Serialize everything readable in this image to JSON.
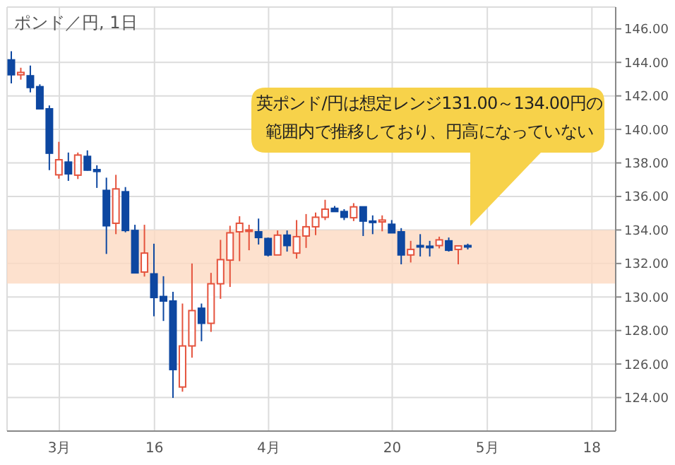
{
  "chart_data": {
    "type": "candlestick",
    "title": "ポンド／円, 1日",
    "categories": [
      null,
      null,
      null,
      null,
      null,
      "3月",
      null,
      null,
      null,
      null,
      null,
      null,
      null,
      null,
      null,
      "16",
      null,
      null,
      null,
      null,
      null,
      null,
      null,
      null,
      null,
      null,
      null,
      "4月",
      null,
      null,
      null,
      null,
      null,
      null,
      null,
      null,
      null,
      null,
      null,
      null,
      "20",
      null,
      null,
      null,
      null,
      null,
      null,
      null,
      null,
      null,
      "5月",
      null,
      null,
      null,
      null,
      null,
      null,
      null,
      null,
      null,
      null,
      "18",
      null,
      null
    ],
    "ohlc": [
      [
        144.15,
        144.66,
        142.75,
        143.26
      ],
      [
        143.26,
        143.68,
        142.97,
        143.4
      ],
      [
        143.2,
        143.81,
        142.21,
        142.5
      ],
      [
        142.55,
        142.69,
        141.23,
        141.23
      ],
      [
        141.23,
        141.43,
        137.57,
        138.58
      ],
      [
        137.29,
        139.26,
        137.06,
        138.19
      ],
      [
        138.05,
        138.62,
        136.93,
        137.35
      ],
      [
        137.27,
        138.62,
        137.04,
        138.47
      ],
      [
        138.39,
        138.75,
        137.54,
        137.57
      ],
      [
        137.6,
        137.86,
        136.51,
        137.49
      ],
      [
        136.36,
        137.12,
        132.57,
        134.25
      ],
      [
        134.4,
        137.29,
        133.75,
        136.45
      ],
      [
        136.28,
        136.56,
        133.86,
        133.97
      ],
      [
        133.97,
        134.31,
        131.44,
        131.44
      ],
      [
        131.49,
        134.31,
        131.22,
        132.62
      ],
      [
        131.38,
        133.18,
        128.85,
        129.97
      ],
      [
        130.03,
        131.24,
        128.57,
        129.76
      ],
      [
        129.76,
        130.31,
        123.98,
        125.67
      ],
      [
        124.63,
        129.61,
        124.35,
        127.08
      ],
      [
        127.08,
        132.0,
        126.38,
        129.19
      ],
      [
        129.33,
        129.61,
        127.36,
        128.43
      ],
      [
        128.43,
        131.44,
        127.92,
        130.79
      ],
      [
        130.79,
        133.41,
        129.89,
        132.23
      ],
      [
        132.2,
        134.25,
        130.6,
        133.83
      ],
      [
        133.89,
        134.82,
        132.14,
        134.4
      ],
      [
        133.97,
        134.31,
        132.79,
        134.0
      ],
      [
        133.89,
        134.68,
        133.13,
        133.55
      ],
      [
        133.49,
        133.55,
        132.42,
        132.51
      ],
      [
        132.51,
        133.97,
        132.51,
        133.69
      ],
      [
        133.69,
        133.97,
        132.71,
        133.07
      ],
      [
        132.62,
        134.59,
        132.29,
        133.6
      ],
      [
        133.64,
        134.95,
        132.93,
        134.19
      ],
      [
        134.19,
        135.04,
        133.69,
        134.76
      ],
      [
        134.76,
        135.8,
        134.59,
        135.24
      ],
      [
        135.29,
        135.43,
        135.1,
        135.1
      ],
      [
        135.1,
        135.24,
        134.59,
        134.76
      ],
      [
        134.73,
        135.6,
        134.53,
        135.38
      ],
      [
        135.38,
        135.38,
        133.64,
        134.53
      ],
      [
        134.53,
        134.87,
        133.75,
        134.45
      ],
      [
        134.48,
        134.87,
        133.92,
        134.59
      ],
      [
        134.34,
        134.59,
        133.83,
        133.83
      ],
      [
        133.89,
        134.11,
        131.95,
        132.51
      ],
      [
        132.51,
        133.35,
        132.06,
        132.84
      ],
      [
        133.07,
        133.75,
        132.42,
        133.02
      ],
      [
        133.03,
        133.35,
        132.42,
        133.0
      ],
      [
        133.07,
        133.6,
        132.9,
        133.41
      ],
      [
        133.35,
        133.55,
        132.71,
        132.79
      ],
      [
        132.84,
        133.05,
        131.95,
        133.05
      ],
      [
        133.07,
        133.18,
        132.84,
        133.04
      ],
      null,
      null,
      null,
      null,
      null,
      null,
      null,
      null,
      null,
      null,
      null,
      null,
      null,
      null,
      null
    ],
    "colors": [
      "#0d47a1",
      "#e5533d",
      "#0d47a1",
      "#0d47a1",
      "#0d47a1",
      "#e5533d",
      "#0d47a1",
      "#e5533d",
      "#0d47a1",
      "#0d47a1",
      "#0d47a1",
      "#e5533d",
      "#0d47a1",
      "#0d47a1",
      "#e5533d",
      "#0d47a1",
      "#0d47a1",
      "#0d47a1",
      "#e5533d",
      "#e5533d",
      "#0d47a1",
      "#e5533d",
      "#e5533d",
      "#e5533d",
      "#e5533d",
      "#e5533d",
      "#0d47a1",
      "#0d47a1",
      "#e5533d",
      "#0d47a1",
      "#e5533d",
      "#e5533d",
      "#e5533d",
      "#e5533d",
      "#0d47a1",
      "#0d47a1",
      "#e5533d",
      "#0d47a1",
      "#0d47a1",
      "#e5533d",
      "#0d47a1",
      "#0d47a1",
      "#e5533d",
      "#0d47a1",
      "#0d47a1",
      "#e5533d",
      "#0d47a1",
      "#e5533d",
      "#0d47a1",
      null,
      null,
      null,
      null,
      null,
      null,
      null,
      null,
      null,
      null,
      null,
      null,
      null,
      null,
      null
    ],
    "ylim": [
      122.0,
      147.3
    ],
    "yticks": [
      {
        "value": 124,
        "label": "124.00"
      },
      {
        "value": 126,
        "label": "126.00"
      },
      {
        "value": 128,
        "label": "128.00"
      },
      {
        "value": 130,
        "label": "130.00"
      },
      {
        "value": 132,
        "label": "132.00"
      },
      {
        "value": 134,
        "label": "134.00"
      },
      {
        "value": 136,
        "label": "136.00"
      },
      {
        "value": 138,
        "label": "138.00"
      },
      {
        "value": 140,
        "label": "140.00"
      },
      {
        "value": 142,
        "label": "142.00"
      },
      {
        "value": 144,
        "label": "144.00"
      },
      {
        "value": 146,
        "label": "146.00"
      }
    ],
    "bands": [
      {
        "axis": "y",
        "from": 130.8,
        "to": 134.0,
        "color": "#fdd9c2"
      }
    ],
    "annotations": [
      "英ポンド/円は想定レンジ131.00～134.00円の範囲内で推移しており、円高になっていない"
    ],
    "grid": true
  }
}
